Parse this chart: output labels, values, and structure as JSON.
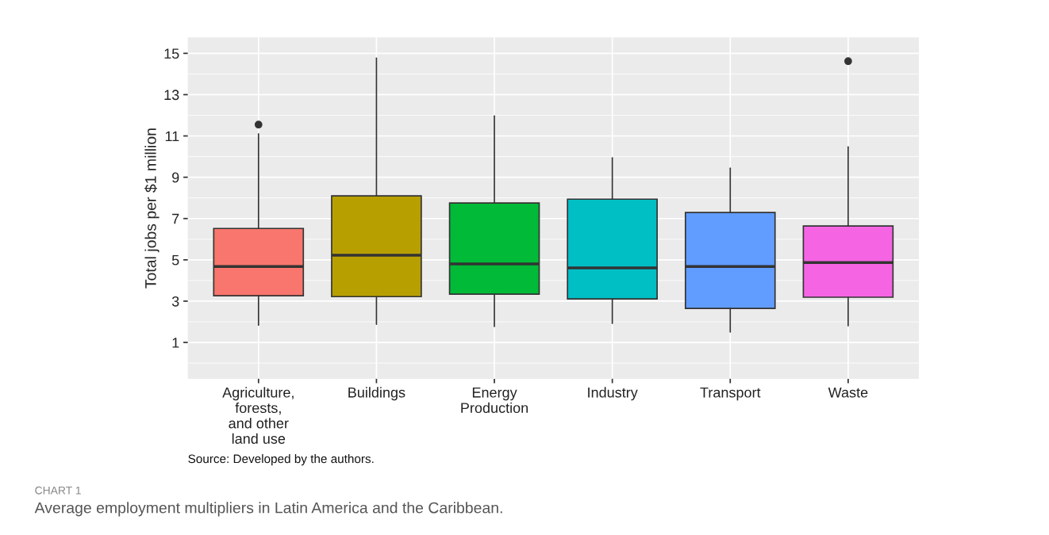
{
  "chart_data": {
    "type": "box",
    "ylabel": "Total jobs per $1 million",
    "categories": [
      "Agriculture,\nforests,\nand other\nland use",
      "Buildings",
      "Energy\nProduction",
      "Industry",
      "Transport",
      "Waste"
    ],
    "colors": [
      "#f8766d",
      "#b79f00",
      "#00ba38",
      "#00bfc4",
      "#619cff",
      "#f564e3"
    ],
    "boxes": [
      {
        "low": 1.84,
        "q1": 3.26,
        "median": 4.68,
        "q3": 6.52,
        "high": 11.1,
        "outliers": [
          11.55
        ]
      },
      {
        "low": 1.88,
        "q1": 3.22,
        "median": 5.22,
        "q3": 8.1,
        "high": 14.77
      },
      {
        "low": 1.77,
        "q1": 3.34,
        "median": 4.8,
        "q3": 7.75,
        "high": 11.97
      },
      {
        "low": 1.92,
        "q1": 3.11,
        "median": 4.61,
        "q3": 7.94,
        "high": 9.94
      },
      {
        "low": 1.5,
        "q1": 2.65,
        "median": 4.68,
        "q3": 7.29,
        "high": 9.44
      },
      {
        "low": 1.81,
        "q1": 3.19,
        "median": 4.87,
        "q3": 6.64,
        "high": 10.47,
        "outliers": [
          14.62
        ]
      }
    ],
    "ylim": [
      -0.76,
      15.77
    ],
    "yticks": [
      1,
      3,
      5,
      7,
      9,
      11,
      13,
      15
    ],
    "grid": true,
    "annotations": [
      "Source: Developed by the authors.",
      "CHART 1",
      "Average employment multipliers in Latin America and the Caribbean."
    ]
  }
}
